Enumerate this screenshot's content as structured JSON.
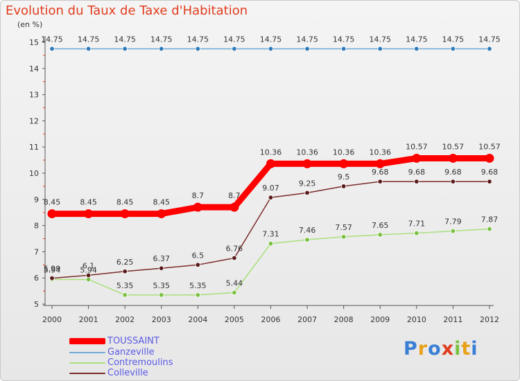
{
  "title": "Evolution du Taux de Taxe d'Habitation",
  "unit_label": "(en %)",
  "logo": {
    "text": "Proxiti",
    "letters": [
      {
        "ch": "P",
        "color": "#3a7fd5"
      },
      {
        "ch": "r",
        "color": "#e8a21a"
      },
      {
        "ch": "o",
        "color": "#3a7fd5"
      },
      {
        "ch": "x",
        "color": "#e03c1d"
      },
      {
        "ch": "i",
        "color": "#7ac142"
      },
      {
        "ch": "t",
        "color": "#e8a21a"
      },
      {
        "ch": "i",
        "color": "#3a7fd5"
      }
    ]
  },
  "chart_data": {
    "type": "line",
    "x": [
      2000,
      2001,
      2002,
      2003,
      2004,
      2005,
      2006,
      2007,
      2008,
      2009,
      2010,
      2011,
      2012
    ],
    "ylim": [
      5,
      15
    ],
    "yticks": [
      5,
      6,
      7,
      8,
      9,
      10,
      11,
      12,
      13,
      14,
      15
    ],
    "grid": false,
    "legend_position": "bottom-left",
    "series": [
      {
        "name": "TOUSSAINT",
        "color": "#ff0000",
        "marker_color": "#ff0000",
        "values": [
          8.45,
          8.45,
          8.45,
          8.45,
          8.7,
          8.7,
          10.36,
          10.36,
          10.36,
          10.36,
          10.57,
          10.57,
          10.57
        ],
        "labels": [
          "8.45",
          "8.45",
          "8.45",
          "8.45",
          "8.7",
          "8.7",
          "10.36",
          "10.36",
          "10.36",
          "10.36",
          "10.57",
          "10.57",
          "10.57"
        ]
      },
      {
        "name": "Ganzeville",
        "color": "#6fa8d6",
        "marker_color": "#2e7ab8",
        "values": [
          14.75,
          14.75,
          14.75,
          14.75,
          14.75,
          14.75,
          14.75,
          14.75,
          14.75,
          14.75,
          14.75,
          14.75,
          14.75
        ],
        "labels": [
          "14.75",
          "14.75",
          "14.75",
          "14.75",
          "14.75",
          "14.75",
          "14.75",
          "14.75",
          "14.75",
          "14.75",
          "14.75",
          "14.75",
          "14.75"
        ]
      },
      {
        "name": "Contremoulins",
        "color": "#a8e07a",
        "marker_color": "#7ac142",
        "values": [
          5.94,
          5.94,
          5.35,
          5.35,
          5.35,
          5.44,
          7.31,
          7.46,
          7.57,
          7.65,
          7.71,
          7.79,
          7.87
        ],
        "labels": [
          "5.94",
          "5.94",
          "5.35",
          "5.35",
          "5.35",
          "5.44",
          "7.31",
          "7.46",
          "7.57",
          "7.65",
          "7.71",
          "7.79",
          "7.87"
        ]
      },
      {
        "name": "Colleville",
        "color": "#7a2a2a",
        "marker_color": "#5a1a1a",
        "values": [
          5.99,
          6.1,
          6.25,
          6.37,
          6.5,
          6.76,
          9.07,
          9.25,
          9.5,
          9.68,
          9.68,
          9.68,
          9.68
        ],
        "labels": [
          "5.99",
          "6.1",
          "6.25",
          "6.37",
          "6.5",
          "6.76",
          "9.07",
          "9.25",
          "9.5",
          "9.68",
          "9.68",
          "9.68",
          "9.68"
        ]
      }
    ]
  }
}
